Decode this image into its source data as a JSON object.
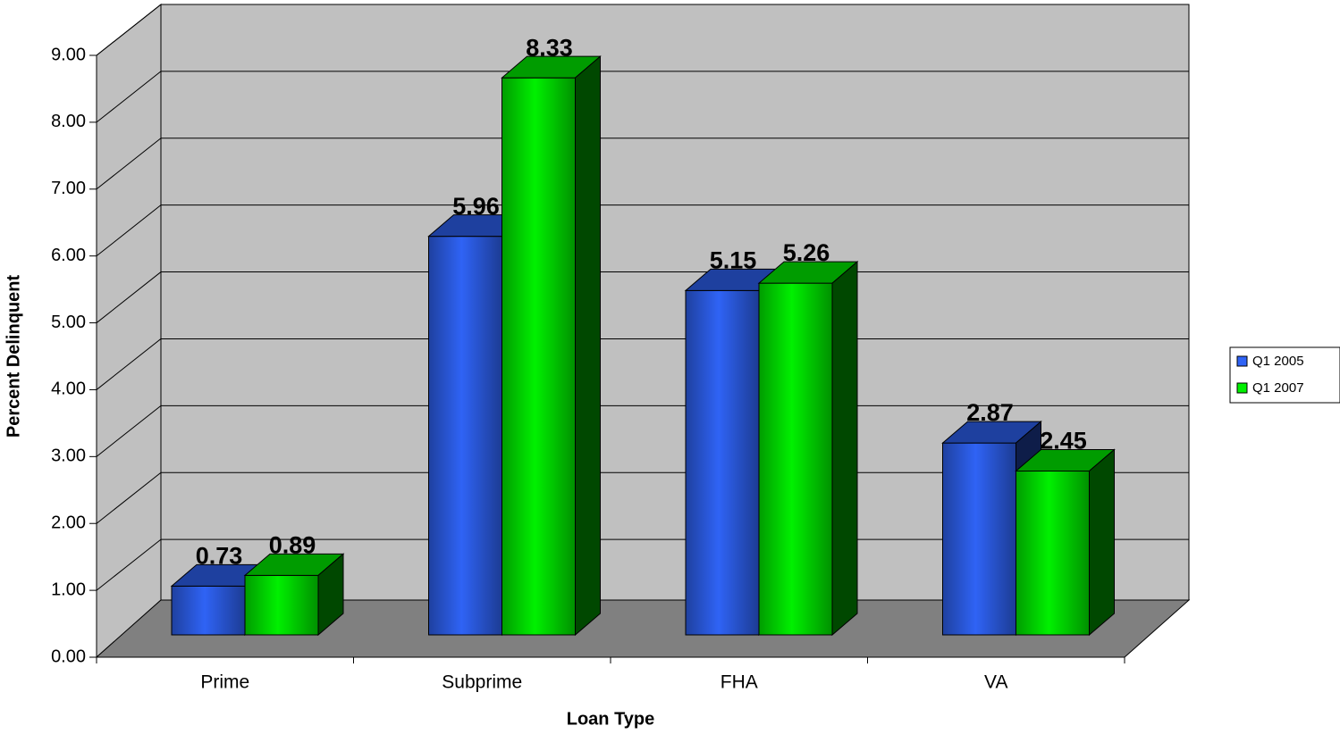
{
  "chart_data": {
    "type": "bar3d",
    "x_label": "Loan Type",
    "y_label": "Percent Delinquent",
    "categories": [
      "Prime",
      "Subprime",
      "FHA",
      "VA"
    ],
    "series": [
      {
        "name": "Q1 2005",
        "color": "#2f63f5",
        "values": [
          0.73,
          5.96,
          5.15,
          2.87
        ]
      },
      {
        "name": "Q1 2007",
        "color": "#00f000",
        "values": [
          0.89,
          8.33,
          5.26,
          2.45
        ]
      }
    ],
    "ylim": [
      0,
      9
    ],
    "yticks": [
      {
        "value": 0,
        "label": "0.00"
      },
      {
        "value": 1,
        "label": "1.00"
      },
      {
        "value": 2,
        "label": "2.00"
      },
      {
        "value": 3,
        "label": "3.00"
      },
      {
        "value": 4,
        "label": "4.00"
      },
      {
        "value": 5,
        "label": "5.00"
      },
      {
        "value": 6,
        "label": "6.00"
      },
      {
        "value": 7,
        "label": "7.00"
      },
      {
        "value": 8,
        "label": "8.00"
      },
      {
        "value": 9,
        "label": "9.00"
      }
    ],
    "grid": true,
    "legend": "right"
  }
}
